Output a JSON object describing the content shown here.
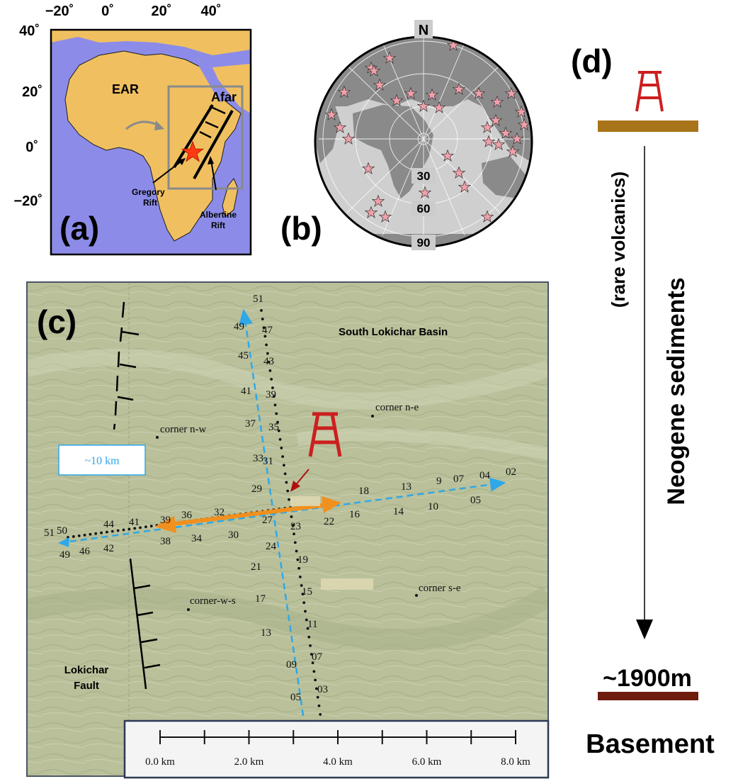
{
  "panel_a": {
    "label": "(a)",
    "lon_ticks": [
      "−20˚",
      "0˚",
      "20˚",
      "40˚"
    ],
    "lat_ticks": [
      "40˚",
      "20˚",
      "0˚",
      "−20˚"
    ],
    "labels": {
      "ear": "EAR",
      "afar": "Afar",
      "gregory": "Gregory\nRift",
      "albertine": "Albertine\nRift"
    },
    "colors": {
      "ocean": "#8c8ce8",
      "land": "#f0c060",
      "star": "#ff3a12"
    }
  },
  "panel_b": {
    "label": "(b)",
    "north": "N",
    "distance_labels": [
      "30",
      "60",
      "90"
    ],
    "colors": {
      "sea": "#cfcfcf",
      "land": "#8a8a8a",
      "star": "#f0a0aa"
    }
  },
  "panel_c": {
    "label": "(c)",
    "basin": "South Lokichar Basin",
    "corners": {
      "nw": "corner n-w",
      "ne": "corner n-e",
      "ws": "corner-w-s",
      "se": "corner s-e"
    },
    "scale_box": "~10 km",
    "fault": "Lokichar\nFault",
    "ns_labels": [
      "51",
      "49",
      "47",
      "45",
      "43",
      "41",
      "39",
      "37",
      "35",
      "33",
      "31",
      "29",
      "27",
      "23",
      "24",
      "21",
      "19",
      "17",
      "15",
      "13",
      "11",
      "09",
      "07",
      "05",
      "03"
    ],
    "ew_labels": [
      "51",
      "49",
      "50",
      "46",
      "44",
      "42",
      "41",
      "39",
      "38",
      "36",
      "34",
      "32",
      "30",
      "22",
      "18",
      "16",
      "13",
      "14",
      "9",
      "10",
      "07",
      "05",
      "04",
      "02"
    ],
    "scalebar": [
      "0.0 km",
      "2.0 km",
      "4.0 km",
      "6.0 km",
      "8.0 km"
    ],
    "colors": {
      "map": "#b9c09a",
      "profile": "#2fa8e8",
      "arrow": "#f0901e",
      "rig": "#cc1f1f"
    }
  },
  "panel_d": {
    "label": "(d)",
    "volcanics": "(rare volcanics)",
    "sediments": "Neogene sediments",
    "depth": "~1900m",
    "basement": "Basement",
    "colors": {
      "top_bar": "#a8741a",
      "bottom_bar": "#6e1c0e",
      "rig": "#cc1f1f"
    }
  }
}
